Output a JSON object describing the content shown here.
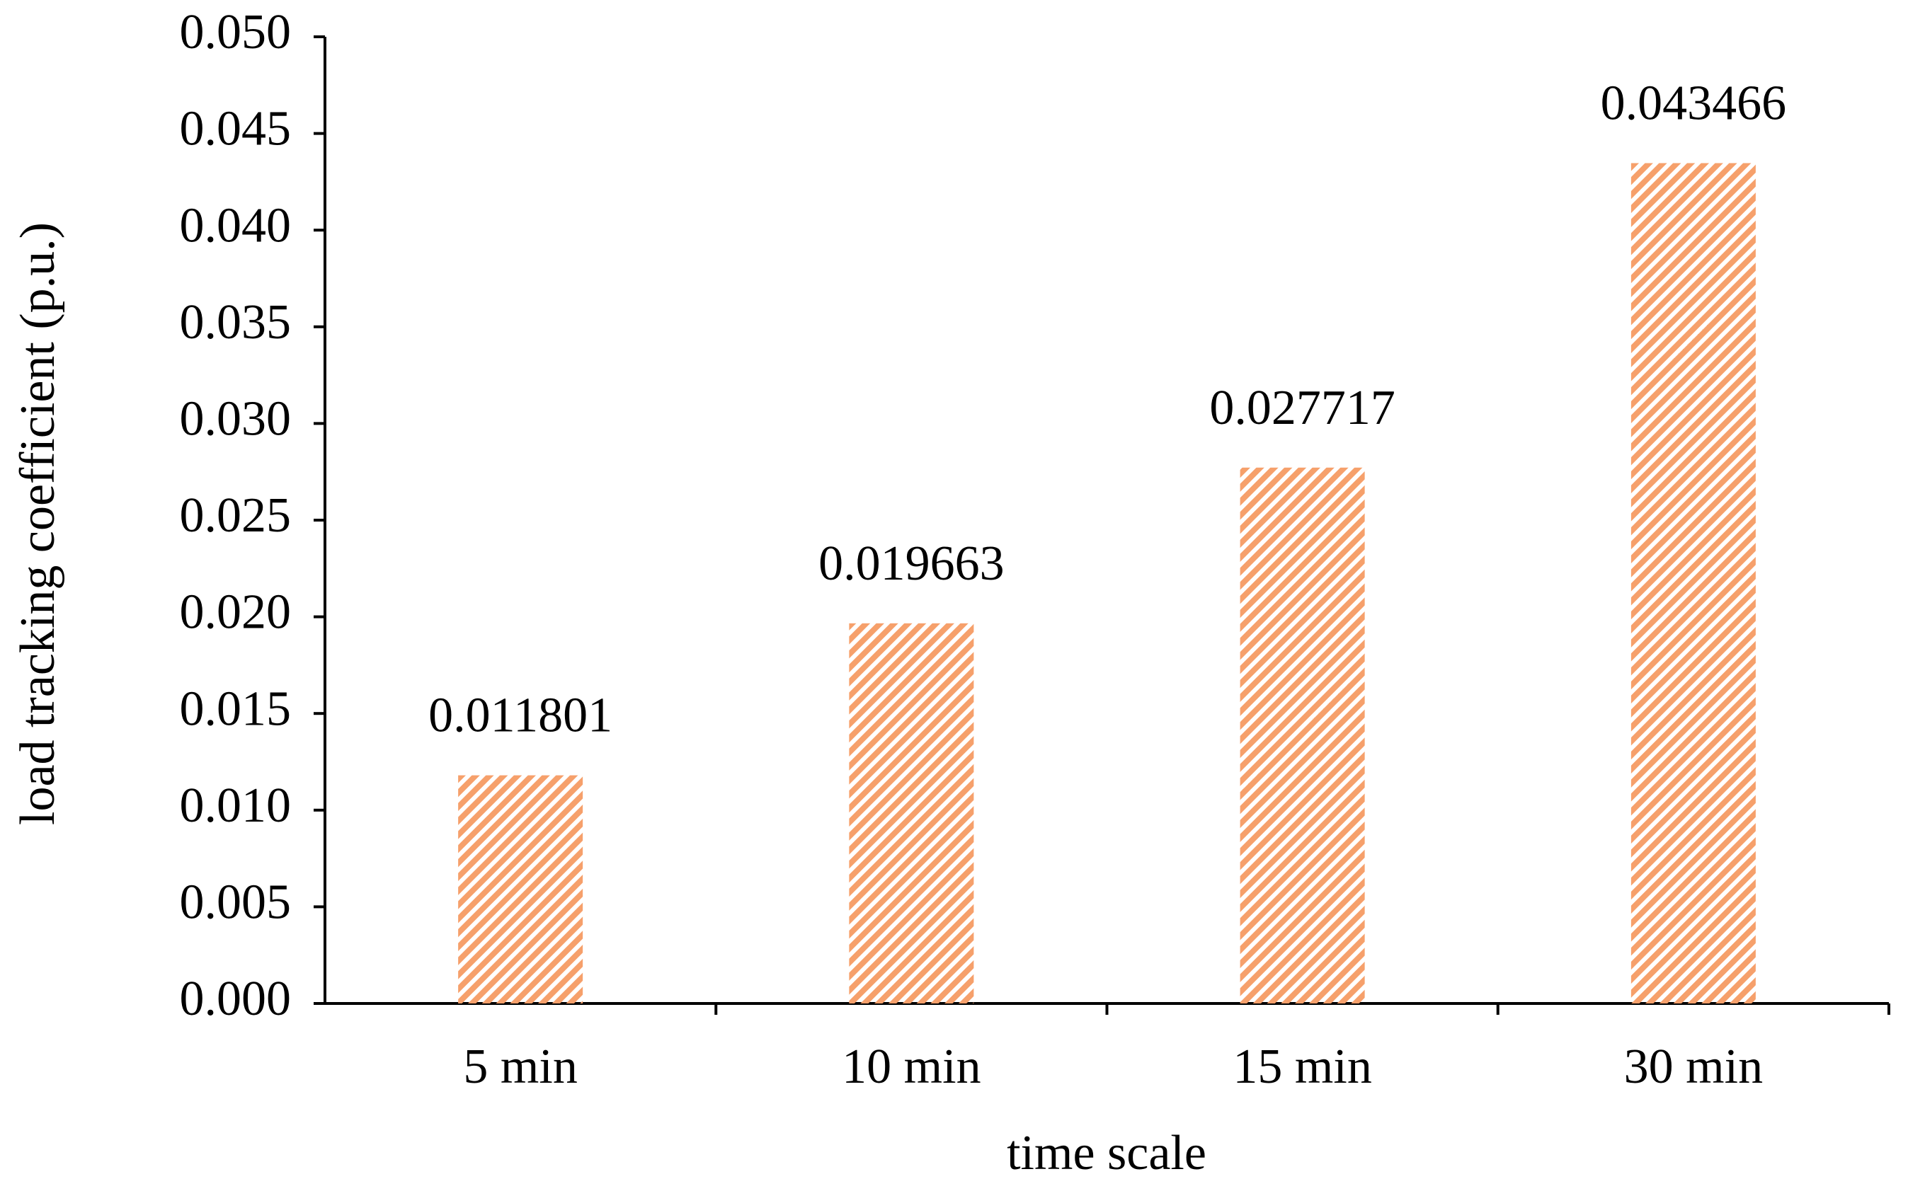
{
  "chart_data": {
    "type": "bar",
    "xlabel": "time scale",
    "ylabel": "load tracking coefficient (p.u.)",
    "categories": [
      "5 min",
      "10 min",
      "15 min",
      "30 min"
    ],
    "values": [
      0.011801,
      0.019663,
      0.027717,
      0.043466
    ],
    "color": "#f6a06b",
    "ylim": [
      0,
      0.05
    ],
    "yticks": [
      {
        "value": 0,
        "label": "0.000"
      },
      {
        "value": 0.005,
        "label": "0.005"
      },
      {
        "value": 0.01,
        "label": "0.010"
      },
      {
        "value": 0.015,
        "label": "0.015"
      },
      {
        "value": 0.02,
        "label": "0.020"
      },
      {
        "value": 0.025,
        "label": "0.025"
      },
      {
        "value": 0.03,
        "label": "0.030"
      },
      {
        "value": 0.035,
        "label": "0.035"
      },
      {
        "value": 0.04,
        "label": "0.040"
      },
      {
        "value": 0.045,
        "label": "0.045"
      },
      {
        "value": 0.05,
        "label": "0.050"
      }
    ]
  }
}
